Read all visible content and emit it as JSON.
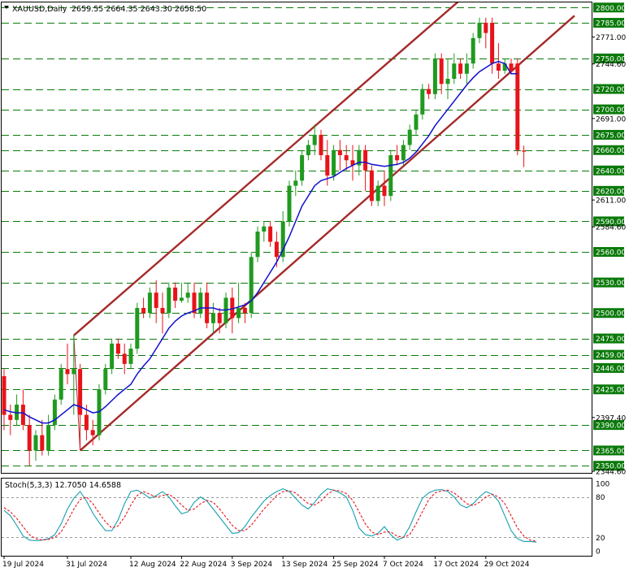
{
  "header": {
    "symbol_timeframe": "XAUUSD,Daily",
    "ohlc": "2659.55 2664.35 2643.30 2658.50"
  },
  "oscillator": {
    "label": "Stoch(5,3,3) 12.7050 14.6588",
    "scale_labels": [
      "100",
      "80",
      "20",
      "0"
    ]
  },
  "colors": {
    "bull": "#1f9a1f",
    "bear": "#e8131a",
    "ma": "#1010d0",
    "channel": "#a52a2a",
    "grid": "#0a7a0a",
    "stoch_main": "#16a0b0",
    "stoch_signal": "#e8131a"
  },
  "chart_data": [
    {
      "type": "candlestick",
      "title": "XAUUSD,Daily",
      "ylim": [
        2343,
        2805
      ],
      "x_tick_labels": [
        "19 Jul 2024",
        "31 Jul 2024",
        "12 Aug 2024",
        "22 Aug 2024",
        "3 Sep 2024",
        "13 Sep 2024",
        "25 Sep 2024",
        "7 Oct 2024",
        "17 Oct 2024",
        "29 Oct 2024"
      ],
      "x_tick_index": [
        0,
        10,
        20,
        28,
        36,
        44,
        52,
        60,
        68,
        76
      ],
      "highlighted_levels": [
        2800.0,
        2785.0,
        2750.0,
        2720.0,
        2700.0,
        2675.0,
        2660.0,
        2640.0,
        2620.0,
        2590.0,
        2560.0,
        2530.0,
        2500.0,
        2475.0,
        2459.0,
        2446.0,
        2425.0,
        2390.0,
        2365.0,
        2350.0
      ],
      "highlighted_labels": [
        "2800.00",
        "2785.00",
        "2750.00",
        "2720.00",
        "2700.00",
        "2675.00",
        "2660.00",
        "2640.00",
        "2620.00",
        "2590.00",
        "2560.00",
        "2530.00",
        "2500.00",
        "2475.00",
        "2459.00",
        "2446.00",
        "2425.00",
        "2390.00",
        "2365.00",
        "2350.00"
      ],
      "scale_labels": [
        "2771.00",
        "2744.60",
        "2691.00",
        "2611.00",
        "2584.60",
        "2397.40",
        "2344.60"
      ],
      "candles": [
        {
          "o": 2438,
          "h": 2445,
          "l": 2385,
          "c": 2400
        },
        {
          "o": 2400,
          "h": 2410,
          "l": 2380,
          "c": 2395
        },
        {
          "o": 2395,
          "h": 2420,
          "l": 2390,
          "c": 2410
        },
        {
          "o": 2410,
          "h": 2425,
          "l": 2385,
          "c": 2390
        },
        {
          "o": 2390,
          "h": 2400,
          "l": 2350,
          "c": 2365
        },
        {
          "o": 2365,
          "h": 2385,
          "l": 2355,
          "c": 2380
        },
        {
          "o": 2380,
          "h": 2395,
          "l": 2360,
          "c": 2365
        },
        {
          "o": 2365,
          "h": 2400,
          "l": 2360,
          "c": 2390
        },
        {
          "o": 2390,
          "h": 2420,
          "l": 2385,
          "c": 2415
        },
        {
          "o": 2415,
          "h": 2450,
          "l": 2410,
          "c": 2445
        },
        {
          "o": 2445,
          "h": 2470,
          "l": 2430,
          "c": 2440
        },
        {
          "o": 2440,
          "h": 2478,
          "l": 2400,
          "c": 2445
        },
        {
          "o": 2445,
          "h": 2450,
          "l": 2365,
          "c": 2400
        },
        {
          "o": 2400,
          "h": 2410,
          "l": 2375,
          "c": 2385
        },
        {
          "o": 2385,
          "h": 2395,
          "l": 2370,
          "c": 2380
        },
        {
          "o": 2380,
          "h": 2430,
          "l": 2375,
          "c": 2425
        },
        {
          "o": 2425,
          "h": 2450,
          "l": 2420,
          "c": 2445
        },
        {
          "o": 2445,
          "h": 2475,
          "l": 2440,
          "c": 2470
        },
        {
          "o": 2470,
          "h": 2475,
          "l": 2455,
          "c": 2460
        },
        {
          "o": 2460,
          "h": 2470,
          "l": 2440,
          "c": 2450
        },
        {
          "o": 2450,
          "h": 2470,
          "l": 2445,
          "c": 2465
        },
        {
          "o": 2465,
          "h": 2510,
          "l": 2460,
          "c": 2505
        },
        {
          "o": 2505,
          "h": 2515,
          "l": 2495,
          "c": 2500
        },
        {
          "o": 2500,
          "h": 2525,
          "l": 2495,
          "c": 2520
        },
        {
          "o": 2520,
          "h": 2532,
          "l": 2490,
          "c": 2505
        },
        {
          "o": 2505,
          "h": 2520,
          "l": 2480,
          "c": 2500
        },
        {
          "o": 2500,
          "h": 2530,
          "l": 2495,
          "c": 2525
        },
        {
          "o": 2525,
          "h": 2530,
          "l": 2505,
          "c": 2512
        },
        {
          "o": 2512,
          "h": 2530,
          "l": 2510,
          "c": 2515
        },
        {
          "o": 2515,
          "h": 2530,
          "l": 2510,
          "c": 2520
        },
        {
          "o": 2520,
          "h": 2530,
          "l": 2495,
          "c": 2500
        },
        {
          "o": 2500,
          "h": 2525,
          "l": 2495,
          "c": 2520
        },
        {
          "o": 2520,
          "h": 2530,
          "l": 2485,
          "c": 2490
        },
        {
          "o": 2490,
          "h": 2510,
          "l": 2480,
          "c": 2500
        },
        {
          "o": 2500,
          "h": 2505,
          "l": 2480,
          "c": 2490
        },
        {
          "o": 2490,
          "h": 2520,
          "l": 2485,
          "c": 2515
        },
        {
          "o": 2515,
          "h": 2525,
          "l": 2480,
          "c": 2495
        },
        {
          "o": 2495,
          "h": 2530,
          "l": 2490,
          "c": 2505
        },
        {
          "o": 2505,
          "h": 2510,
          "l": 2490,
          "c": 2500
        },
        {
          "o": 2500,
          "h": 2560,
          "l": 2495,
          "c": 2555
        },
        {
          "o": 2555,
          "h": 2585,
          "l": 2550,
          "c": 2580
        },
        {
          "o": 2580,
          "h": 2590,
          "l": 2570,
          "c": 2585
        },
        {
          "o": 2585,
          "h": 2590,
          "l": 2565,
          "c": 2570
        },
        {
          "o": 2570,
          "h": 2580,
          "l": 2545,
          "c": 2555
        },
        {
          "o": 2555,
          "h": 2600,
          "l": 2550,
          "c": 2590
        },
        {
          "o": 2590,
          "h": 2630,
          "l": 2585,
          "c": 2625
        },
        {
          "o": 2625,
          "h": 2640,
          "l": 2615,
          "c": 2630
        },
        {
          "o": 2630,
          "h": 2660,
          "l": 2625,
          "c": 2655
        },
        {
          "o": 2655,
          "h": 2670,
          "l": 2650,
          "c": 2665
        },
        {
          "o": 2665,
          "h": 2685,
          "l": 2655,
          "c": 2675
        },
        {
          "o": 2675,
          "h": 2680,
          "l": 2650,
          "c": 2655
        },
        {
          "o": 2655,
          "h": 2670,
          "l": 2625,
          "c": 2635
        },
        {
          "o": 2635,
          "h": 2665,
          "l": 2630,
          "c": 2660
        },
        {
          "o": 2660,
          "h": 2670,
          "l": 2640,
          "c": 2655
        },
        {
          "o": 2655,
          "h": 2665,
          "l": 2640,
          "c": 2650
        },
        {
          "o": 2650,
          "h": 2665,
          "l": 2630,
          "c": 2645
        },
        {
          "o": 2645,
          "h": 2665,
          "l": 2635,
          "c": 2660
        },
        {
          "o": 2660,
          "h": 2665,
          "l": 2620,
          "c": 2640
        },
        {
          "o": 2640,
          "h": 2645,
          "l": 2605,
          "c": 2610
        },
        {
          "o": 2610,
          "h": 2630,
          "l": 2605,
          "c": 2625
        },
        {
          "o": 2625,
          "h": 2640,
          "l": 2605,
          "c": 2615
        },
        {
          "o": 2615,
          "h": 2660,
          "l": 2610,
          "c": 2655
        },
        {
          "o": 2655,
          "h": 2665,
          "l": 2645,
          "c": 2650
        },
        {
          "o": 2650,
          "h": 2670,
          "l": 2645,
          "c": 2665
        },
        {
          "o": 2665,
          "h": 2685,
          "l": 2660,
          "c": 2680
        },
        {
          "o": 2680,
          "h": 2700,
          "l": 2675,
          "c": 2695
        },
        {
          "o": 2695,
          "h": 2725,
          "l": 2690,
          "c": 2720
        },
        {
          "o": 2720,
          "h": 2725,
          "l": 2710,
          "c": 2715
        },
        {
          "o": 2715,
          "h": 2755,
          "l": 2710,
          "c": 2750
        },
        {
          "o": 2750,
          "h": 2755,
          "l": 2715,
          "c": 2725
        },
        {
          "o": 2725,
          "h": 2750,
          "l": 2710,
          "c": 2730
        },
        {
          "o": 2730,
          "h": 2755,
          "l": 2725,
          "c": 2745
        },
        {
          "o": 2745,
          "h": 2750,
          "l": 2730,
          "c": 2735
        },
        {
          "o": 2735,
          "h": 2755,
          "l": 2725,
          "c": 2745
        },
        {
          "o": 2745,
          "h": 2775,
          "l": 2740,
          "c": 2770
        },
        {
          "o": 2770,
          "h": 2790,
          "l": 2765,
          "c": 2785
        },
        {
          "o": 2785,
          "h": 2790,
          "l": 2760,
          "c": 2775
        },
        {
          "o": 2785,
          "h": 2790,
          "l": 2735,
          "c": 2745
        },
        {
          "o": 2745,
          "h": 2765,
          "l": 2730,
          "c": 2738
        },
        {
          "o": 2738,
          "h": 2750,
          "l": 2735,
          "c": 2745
        },
        {
          "o": 2745,
          "h": 2750,
          "l": 2735,
          "c": 2738
        },
        {
          "o": 2745,
          "h": 2750,
          "l": 2655,
          "c": 2660
        },
        {
          "o": 2659.55,
          "h": 2664.35,
          "l": 2643.3,
          "c": 2658.5
        }
      ],
      "moving_average": [
        2405,
        2403,
        2402,
        2402,
        2398,
        2395,
        2392,
        2392,
        2395,
        2400,
        2405,
        2410,
        2408,
        2405,
        2402,
        2403,
        2408,
        2414,
        2420,
        2425,
        2430,
        2440,
        2448,
        2455,
        2465,
        2475,
        2485,
        2492,
        2497,
        2500,
        2502,
        2505,
        2505,
        2505,
        2503,
        2503,
        2504,
        2506,
        2508,
        2512,
        2520,
        2530,
        2540,
        2550,
        2562,
        2575,
        2590,
        2605,
        2615,
        2625,
        2630,
        2632,
        2634,
        2638,
        2642,
        2645,
        2648,
        2648,
        2646,
        2645,
        2644,
        2645,
        2646,
        2648,
        2652,
        2658,
        2666,
        2674,
        2684,
        2692,
        2700,
        2708,
        2716,
        2724,
        2731,
        2737,
        2741,
        2745,
        2747,
        2745,
        2735,
        2735
      ],
      "channel": {
        "upper": [
          {
            "i": 11,
            "p": 2478
          },
          {
            "i": 90,
            "p": 2905
          }
        ],
        "lower": [
          {
            "i": 12,
            "p": 2365
          },
          {
            "i": 90,
            "p": 2792
          }
        ]
      }
    },
    {
      "type": "line",
      "title": "Stoch(5,3,3)",
      "ylim": [
        0,
        100
      ],
      "levels": [
        80,
        20
      ],
      "series": [
        {
          "name": "%K",
          "values": [
            60,
            52,
            38,
            22,
            16,
            15,
            16,
            18,
            24,
            40,
            62,
            78,
            88,
            74,
            56,
            42,
            30,
            30,
            46,
            70,
            88,
            90,
            85,
            78,
            82,
            88,
            80,
            67,
            55,
            58,
            72,
            80,
            74,
            62,
            50,
            38,
            26,
            27,
            36,
            50,
            62,
            74,
            82,
            88,
            92,
            88,
            78,
            68,
            62,
            72,
            84,
            92,
            90,
            86,
            80,
            60,
            34,
            24,
            22,
            26,
            36,
            24,
            16,
            20,
            36,
            58,
            78,
            86,
            90,
            91,
            88,
            80,
            68,
            64,
            70,
            80,
            88,
            84,
            74,
            52,
            30,
            18,
            14,
            14,
            13
          ]
        },
        {
          "name": "%D",
          "values": [
            64,
            58,
            48,
            36,
            24,
            18,
            16,
            17,
            20,
            28,
            44,
            62,
            76,
            80,
            70,
            56,
            43,
            34,
            37,
            50,
            68,
            82,
            88,
            84,
            80,
            82,
            84,
            78,
            68,
            60,
            62,
            70,
            75,
            72,
            62,
            50,
            38,
            30,
            30,
            38,
            50,
            62,
            72,
            82,
            88,
            89,
            86,
            78,
            70,
            68,
            74,
            84,
            90,
            89,
            85,
            75,
            58,
            40,
            28,
            24,
            28,
            28,
            22,
            20,
            24,
            40,
            58,
            76,
            86,
            89,
            90,
            86,
            78,
            70,
            67,
            72,
            80,
            84,
            80,
            70,
            52,
            34,
            22,
            16,
            14
          ]
        }
      ]
    }
  ]
}
